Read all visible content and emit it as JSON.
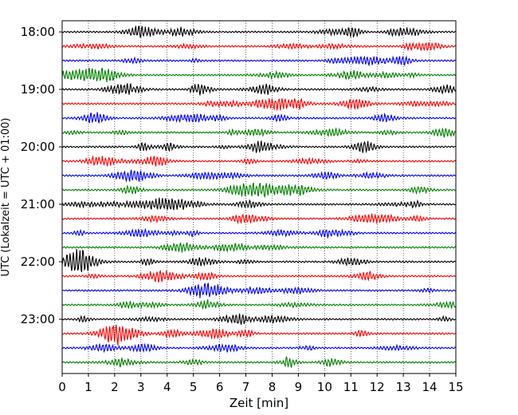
{
  "chart_data": {
    "type": "line",
    "title": "",
    "xlabel": "Zeit  [min]",
    "ylabel": "UTC (Lokalzeit = UTC + 01:00)",
    "xlim": [
      0,
      15
    ],
    "x_ticks": [
      "0",
      "1",
      "2",
      "3",
      "4",
      "5",
      "6",
      "7",
      "8",
      "9",
      "10",
      "11",
      "12",
      "13",
      "14",
      "15"
    ],
    "y_ticks": [
      {
        "label": "18:00",
        "row": 0
      },
      {
        "label": "19:00",
        "row": 4
      },
      {
        "label": "20:00",
        "row": 8
      },
      {
        "label": "21:00",
        "row": 12
      },
      {
        "label": "22:00",
        "row": 16
      },
      {
        "label": "23:00",
        "row": 20
      }
    ],
    "rows": 24,
    "trace_colors": [
      "#000000",
      "#ff0000",
      "#0000ff",
      "#008000"
    ],
    "grid": "vertical dotted",
    "legend": "none"
  }
}
